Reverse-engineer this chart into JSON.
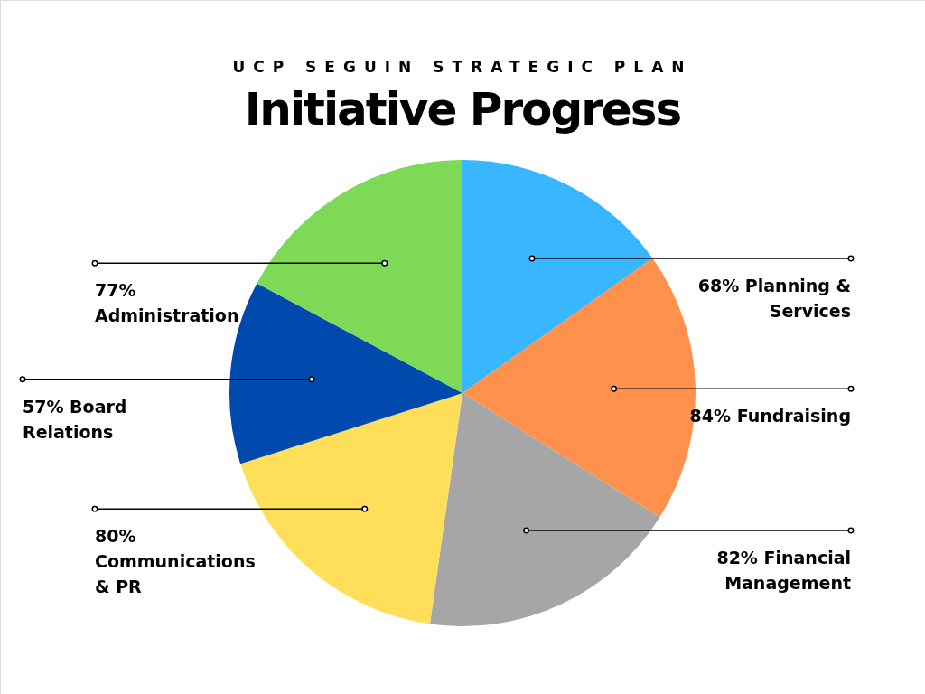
{
  "chart_data": {
    "type": "pie",
    "subtitle": "UCP SEGUIN STRATEGIC PLAN",
    "title": "Initiative Progress",
    "categories": [
      "Planning & Services",
      "Fundraising",
      "Financial Management",
      "Communications & PR",
      "Board Relations",
      "Administration"
    ],
    "values": [
      68,
      84,
      82,
      80,
      57,
      77
    ],
    "value_labels": [
      "68%",
      "84%",
      "82%",
      "80%",
      "57%",
      "77%"
    ],
    "colors": [
      "#38b6ff",
      "#ff914d",
      "#a6a6a6",
      "#ffde59",
      "#004aad",
      "#7ed957"
    ]
  }
}
